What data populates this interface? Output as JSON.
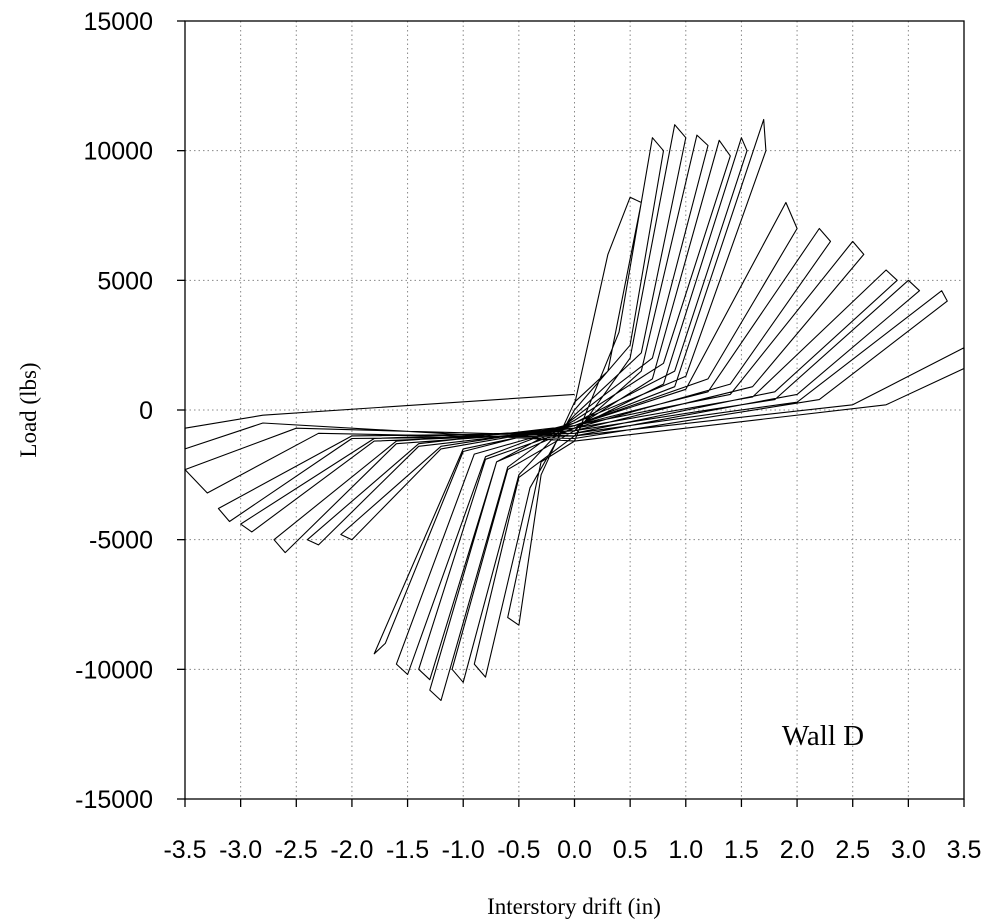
{
  "chart_data": {
    "type": "line",
    "title": "",
    "xlabel": "Interstory drift (in)",
    "ylabel": "Load (lbs)",
    "xlim": [
      -3.5,
      3.5
    ],
    "ylim": [
      -15000,
      15000
    ],
    "x_ticks": [
      "-3.5",
      "-3.0",
      "-2.5",
      "-2.0",
      "-1.5",
      "-1.0",
      "-0.5",
      "0.0",
      "0.5",
      "1.0",
      "1.5",
      "2.0",
      "2.5",
      "3.0",
      "3.5"
    ],
    "y_ticks": [
      "15000",
      "10000",
      "5000",
      "0",
      "-5000",
      "-10000",
      "-15000"
    ],
    "grid": true,
    "annotation": "Wall D",
    "series": [
      {
        "description_hidden": true,
        "points": [
          [
            0.0,
            200
          ],
          [
            0.3,
            6000
          ],
          [
            0.5,
            8200
          ],
          [
            0.6,
            8000
          ],
          [
            0.3,
            1500
          ],
          [
            0.0,
            300
          ],
          [
            -0.3,
            -2500
          ],
          [
            -0.5,
            -8300
          ],
          [
            -0.6,
            -8000
          ],
          [
            -0.3,
            -2000
          ],
          [
            0.0,
            -1200
          ],
          [
            0.4,
            3000
          ],
          [
            0.7,
            10500
          ],
          [
            0.8,
            10000
          ],
          [
            0.5,
            2500
          ],
          [
            0.0,
            0
          ],
          [
            -0.4,
            -3000
          ],
          [
            -0.8,
            -10300
          ],
          [
            -0.9,
            -9800
          ],
          [
            -0.5,
            -2600
          ],
          [
            0.0,
            -1000
          ],
          [
            0.5,
            2000
          ],
          [
            0.9,
            11000
          ],
          [
            1.0,
            10500
          ],
          [
            0.6,
            2200
          ],
          [
            0.0,
            -200
          ],
          [
            -0.5,
            -2500
          ],
          [
            -1.0,
            -10500
          ],
          [
            -1.1,
            -10000
          ],
          [
            -0.6,
            -2300
          ],
          [
            0.0,
            -800
          ],
          [
            0.6,
            1500
          ],
          [
            1.1,
            10600
          ],
          [
            1.2,
            10200
          ],
          [
            0.7,
            2000
          ],
          [
            0.0,
            -300
          ],
          [
            -0.6,
            -2200
          ],
          [
            -1.2,
            -11200
          ],
          [
            -1.3,
            -10800
          ],
          [
            -0.7,
            -2000
          ],
          [
            0.0,
            -700
          ],
          [
            0.7,
            1200
          ],
          [
            1.3,
            10400
          ],
          [
            1.4,
            9800
          ],
          [
            0.8,
            1800
          ],
          [
            0.0,
            -400
          ],
          [
            -0.7,
            -2000
          ],
          [
            -1.3,
            -10400
          ],
          [
            -1.4,
            -10000
          ],
          [
            -0.8,
            -1900
          ],
          [
            0.0,
            -700
          ],
          [
            0.8,
            1000
          ],
          [
            1.5,
            10500
          ],
          [
            1.55,
            10000
          ],
          [
            0.9,
            1500
          ],
          [
            0.0,
            -500
          ],
          [
            -0.8,
            -1800
          ],
          [
            -1.5,
            -10200
          ],
          [
            -1.6,
            -9800
          ],
          [
            -0.9,
            -1700
          ],
          [
            0.0,
            -600
          ],
          [
            0.9,
            900
          ],
          [
            1.7,
            11200
          ],
          [
            1.72,
            10000
          ],
          [
            1.0,
            1300
          ],
          [
            0.0,
            -500
          ],
          [
            -1.0,
            -1600
          ],
          [
            -1.7,
            -9000
          ],
          [
            -1.8,
            -9400
          ],
          [
            -1.0,
            -1500
          ],
          [
            0.0,
            -600
          ],
          [
            1.0,
            800
          ],
          [
            1.9,
            8000
          ],
          [
            2.0,
            7000
          ],
          [
            1.2,
            1200
          ],
          [
            0.0,
            -600
          ],
          [
            -1.2,
            -1500
          ],
          [
            -2.0,
            -5000
          ],
          [
            -2.1,
            -4800
          ],
          [
            -1.2,
            -1400
          ],
          [
            0.0,
            -600
          ],
          [
            1.2,
            700
          ],
          [
            2.2,
            7000
          ],
          [
            2.3,
            6500
          ],
          [
            1.4,
            1000
          ],
          [
            0.0,
            -700
          ],
          [
            -1.4,
            -1400
          ],
          [
            -2.3,
            -5200
          ],
          [
            -2.4,
            -5000
          ],
          [
            -1.4,
            -1300
          ],
          [
            0.0,
            -600
          ],
          [
            1.4,
            600
          ],
          [
            2.5,
            6500
          ],
          [
            2.6,
            6000
          ],
          [
            1.6,
            900
          ],
          [
            0.0,
            -800
          ],
          [
            -1.6,
            -1300
          ],
          [
            -2.6,
            -5500
          ],
          [
            -2.7,
            -5000
          ],
          [
            -1.6,
            -1200
          ],
          [
            0.0,
            -700
          ],
          [
            1.6,
            500
          ],
          [
            2.8,
            5400
          ],
          [
            2.9,
            5000
          ],
          [
            1.8,
            700
          ],
          [
            0.0,
            -900
          ],
          [
            -1.8,
            -1200
          ],
          [
            -2.9,
            -4700
          ],
          [
            -3.0,
            -4400
          ],
          [
            -1.8,
            -1100
          ],
          [
            0.0,
            -800
          ],
          [
            1.8,
            400
          ],
          [
            3.0,
            5000
          ],
          [
            3.1,
            4600
          ],
          [
            2.0,
            600
          ],
          [
            0.0,
            -1000
          ],
          [
            -2.0,
            -1100
          ],
          [
            -3.1,
            -4300
          ],
          [
            -3.2,
            -3800
          ],
          [
            -2.0,
            -1000
          ],
          [
            0.0,
            -900
          ],
          [
            2.0,
            300
          ],
          [
            3.3,
            4600
          ],
          [
            3.35,
            4200
          ],
          [
            2.2,
            400
          ],
          [
            0.0,
            -1100
          ],
          [
            -2.3,
            -900
          ],
          [
            -3.3,
            -3200
          ],
          [
            -3.5,
            -2300
          ],
          [
            -2.5,
            -700
          ],
          [
            0.0,
            -1000
          ],
          [
            2.5,
            200
          ],
          [
            3.5,
            2400
          ],
          [
            3.5,
            1600
          ],
          [
            2.8,
            200
          ],
          [
            0.0,
            -1200
          ],
          [
            -2.8,
            -500
          ],
          [
            -3.5,
            -1500
          ],
          [
            -3.5,
            -700
          ],
          [
            -2.8,
            -200
          ],
          [
            0.0,
            600
          ]
        ]
      }
    ]
  }
}
